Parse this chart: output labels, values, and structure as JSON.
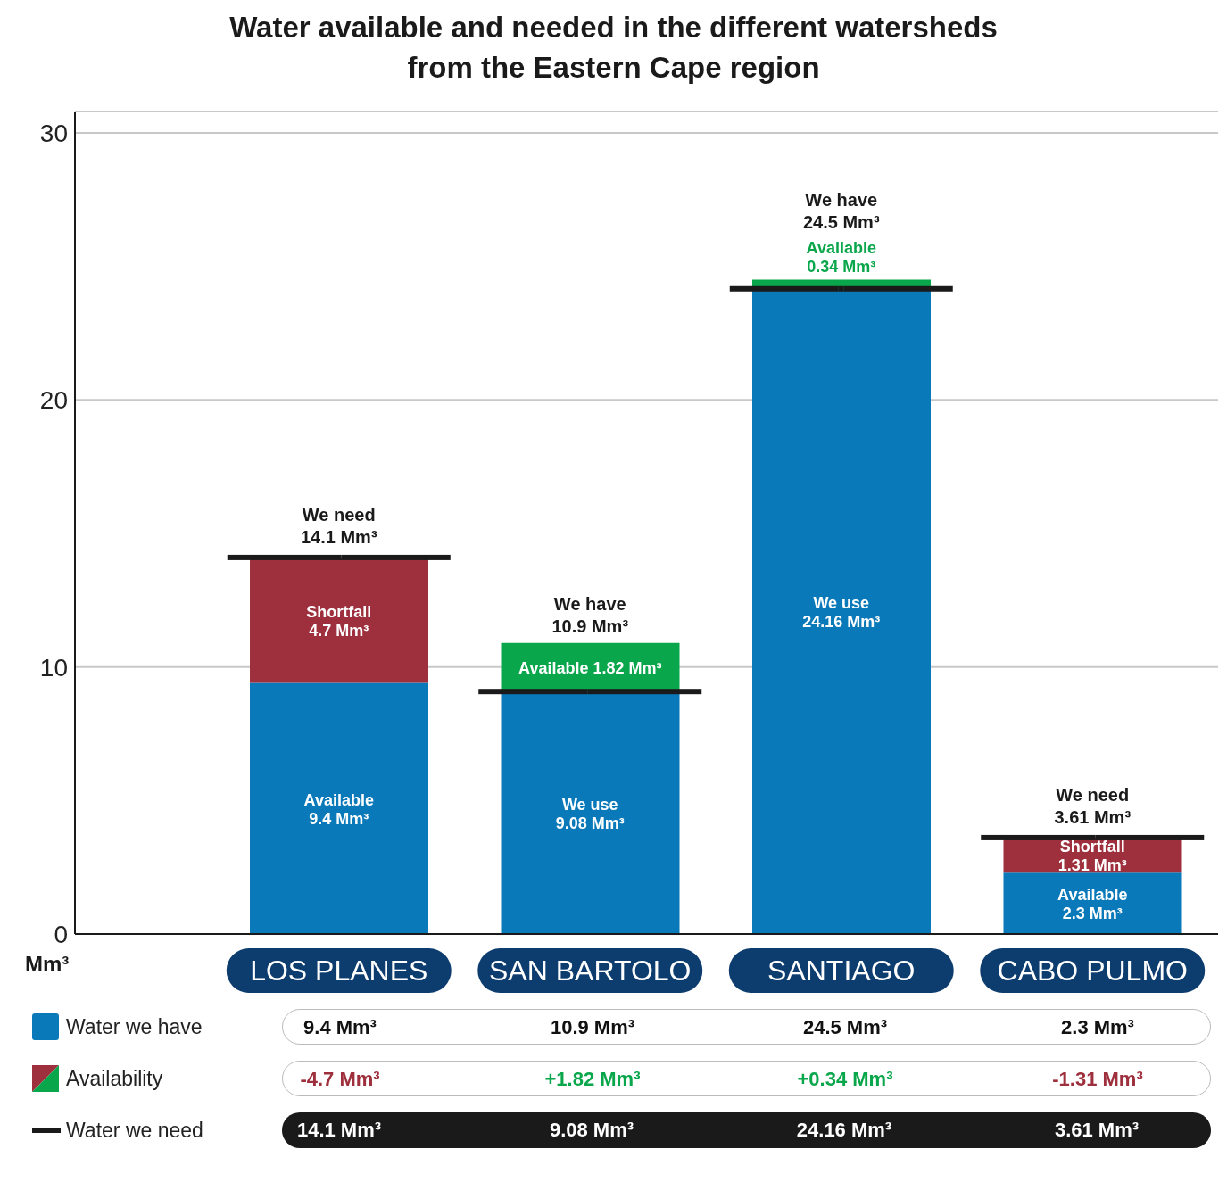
{
  "chart_data": {
    "type": "bar",
    "title": "Water available and needed in the different watersheds\nfrom the Eastern Cape region",
    "ylabel": "Mm³",
    "categories": [
      "LOS PLANES",
      "SAN BARTOLO",
      "SANTIAGO",
      "CABO PULMO"
    ],
    "stacked": true,
    "ylim": [
      0,
      30.8
    ],
    "yticks": [
      0,
      10,
      20,
      30
    ],
    "grid": "y",
    "legend": "bottom left",
    "series": [
      {
        "name": "Water we have",
        "color": "#0a79b9",
        "values": [
          9.4,
          9.08,
          24.16,
          2.3
        ],
        "value_labels": [
          "Available\n9.4 Mm³",
          "We use\n9.08 Mm³",
          "We use\n24.16 Mm³",
          "Available\n2.3 Mm³"
        ]
      },
      {
        "name": "Availability",
        "colors": [
          "#9e2f3c",
          "#0aa64b",
          "#0aa64b",
          "#9e2f3c"
        ],
        "values": [
          4.7,
          1.82,
          0.34,
          1.31
        ],
        "value_labels": [
          "Shortfall\n4.7 Mm³",
          "Available 1.82 Mm³",
          "Available\n0.34 Mm³",
          "Shortfall\n1.31 Mm³"
        ]
      },
      {
        "name": "Water we need",
        "type": "scatter",
        "color": "#1a1a1a",
        "values": [
          14.1,
          9.08,
          24.16,
          3.61
        ],
        "value_labels": [
          "We need\n14.1 Mm³",
          null,
          null,
          "We need\n3.61 Mm³"
        ]
      }
    ],
    "annotations": [
      {
        "text": "We have\n10.9 Mm³",
        "x": "SAN BARTOLO",
        "y": 10.9
      },
      {
        "text": "We have\n24.5 Mm³",
        "x": "SANTIAGO",
        "y": 24.5
      },
      "9.4 Mm³",
      "10.9 Mm³",
      "24.5 Mm³",
      "2.3 Mm³",
      "-4.7 Mm³",
      "+1.82 Mm³",
      "+0.34 Mm³",
      "-1.31 Mm³",
      "14.1 Mm³",
      "9.08 Mm³",
      "24.16 Mm³",
      "3.61 Mm³"
    ]
  }
}
